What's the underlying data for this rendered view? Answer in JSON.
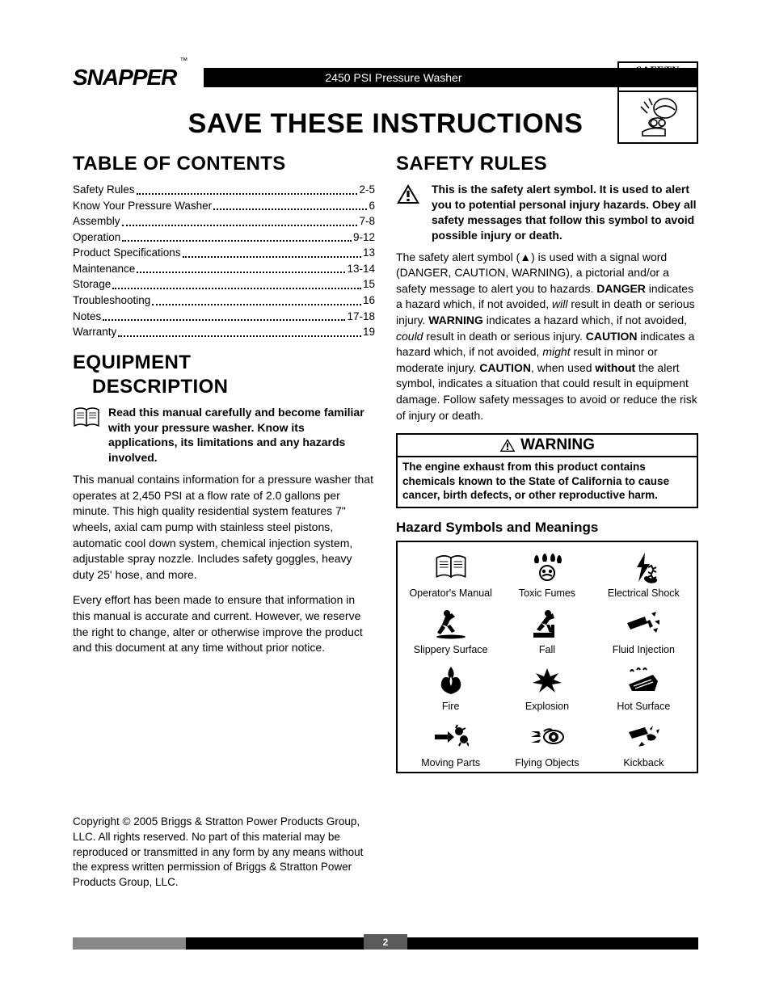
{
  "brand": "SNAPPER",
  "trademark": "™",
  "header_product": "2450 PSI Pressure Washer",
  "safety_badge_title": "SAFETY RULES",
  "main_title": "SAVE THESE INSTRUCTIONS",
  "toc_heading": "TABLE OF CONTENTS",
  "toc": [
    {
      "label": "Safety Rules",
      "pages": "2-5"
    },
    {
      "label": "Know Your Pressure Washer",
      "pages": "6"
    },
    {
      "label": "Assembly",
      "pages": "7-8"
    },
    {
      "label": "Operation",
      "pages": "9-12"
    },
    {
      "label": "Product Specifications",
      "pages": "13"
    },
    {
      "label": "Maintenance",
      "pages": "13-14"
    },
    {
      "label": "Storage",
      "pages": "15"
    },
    {
      "label": "Troubleshooting",
      "pages": "16"
    },
    {
      "label": "Notes",
      "pages": "17-18"
    },
    {
      "label": "Warranty",
      "pages": "19"
    }
  ],
  "equipment_heading_1": "EQUIPMENT",
  "equipment_heading_2": "DESCRIPTION",
  "manual_bold_intro": "Read this manual carefully and become familiar with your pressure washer. Know its applications, its limitations and any hazards involved.",
  "equipment_p1": "This manual contains information for a pressure washer that operates at 2,450 PSI at a flow rate of 2.0 gallons per minute. This high quality residential system features 7\" wheels, axial cam pump with stainless steel pistons, automatic cool down system, chemical injection system, adjustable spray nozzle. Includes safety goggles, heavy duty 25' hose, and more.",
  "equipment_p2": "Every effort has been made to ensure that information in this manual is accurate and current. However, we reserve the right to change, alter or otherwise improve the product and this document at any time without prior notice.",
  "copyright": "Copyright © 2005 Briggs & Stratton Power Products Group, LLC.  All rights reserved.  No part of this material may be reproduced or transmitted in any form by any means without the express written permission of Briggs & Stratton Power Products Group, LLC.",
  "safety_heading": "SAFETY RULES",
  "safety_alert_bold": "This is the safety alert symbol. It is used to alert you to potential personal injury hazards. Obey all safety messages that follow this symbol to avoid possible injury or death.",
  "safety_paragraph_html": "The safety alert symbol (▲) is used with a signal word (DANGER, CAUTION, WARNING), a pictorial and/or a safety message to alert you to hazards. <b>DANGER</b> indicates a hazard which, if not avoided, <em>will</em> result in death or serious injury. <b>WARNING</b> indicates a hazard which, if not avoided, <em>could</em> result in death or serious injury. <b>CAUTION</b> indicates a hazard which, if not avoided, <em>might</em> result in minor or moderate injury. <b>CAUTION</b>, when used <b>without</b> the alert symbol, indicates a situation that could result in equipment damage. Follow safety messages to avoid or reduce the risk of injury or death.",
  "warning_title": "WARNING",
  "warning_body": "The engine exhaust from this product contains chemicals known to the State of California to cause cancer, birth defects, or other reproductive harm.",
  "hazard_heading": "Hazard Symbols and Meanings",
  "hazards": [
    {
      "label": "Operator's Manual",
      "icon": "manual"
    },
    {
      "label": "Toxic Fumes",
      "icon": "fumes"
    },
    {
      "label": "Electrical Shock",
      "icon": "shock"
    },
    {
      "label": "Slippery Surface",
      "icon": "slip"
    },
    {
      "label": "Fall",
      "icon": "fall"
    },
    {
      "label": "Fluid Injection",
      "icon": "inject"
    },
    {
      "label": "Fire",
      "icon": "fire"
    },
    {
      "label": "Explosion",
      "icon": "explode"
    },
    {
      "label": "Hot Surface",
      "icon": "hot"
    },
    {
      "label": "Moving Parts",
      "icon": "moving"
    },
    {
      "label": "Flying Objects",
      "icon": "flying"
    },
    {
      "label": "Kickback",
      "icon": "kick"
    }
  ],
  "page_number": "2",
  "colors": {
    "black": "#000000",
    "grey_bar": "#888888",
    "tab": "#5a5a5a"
  }
}
